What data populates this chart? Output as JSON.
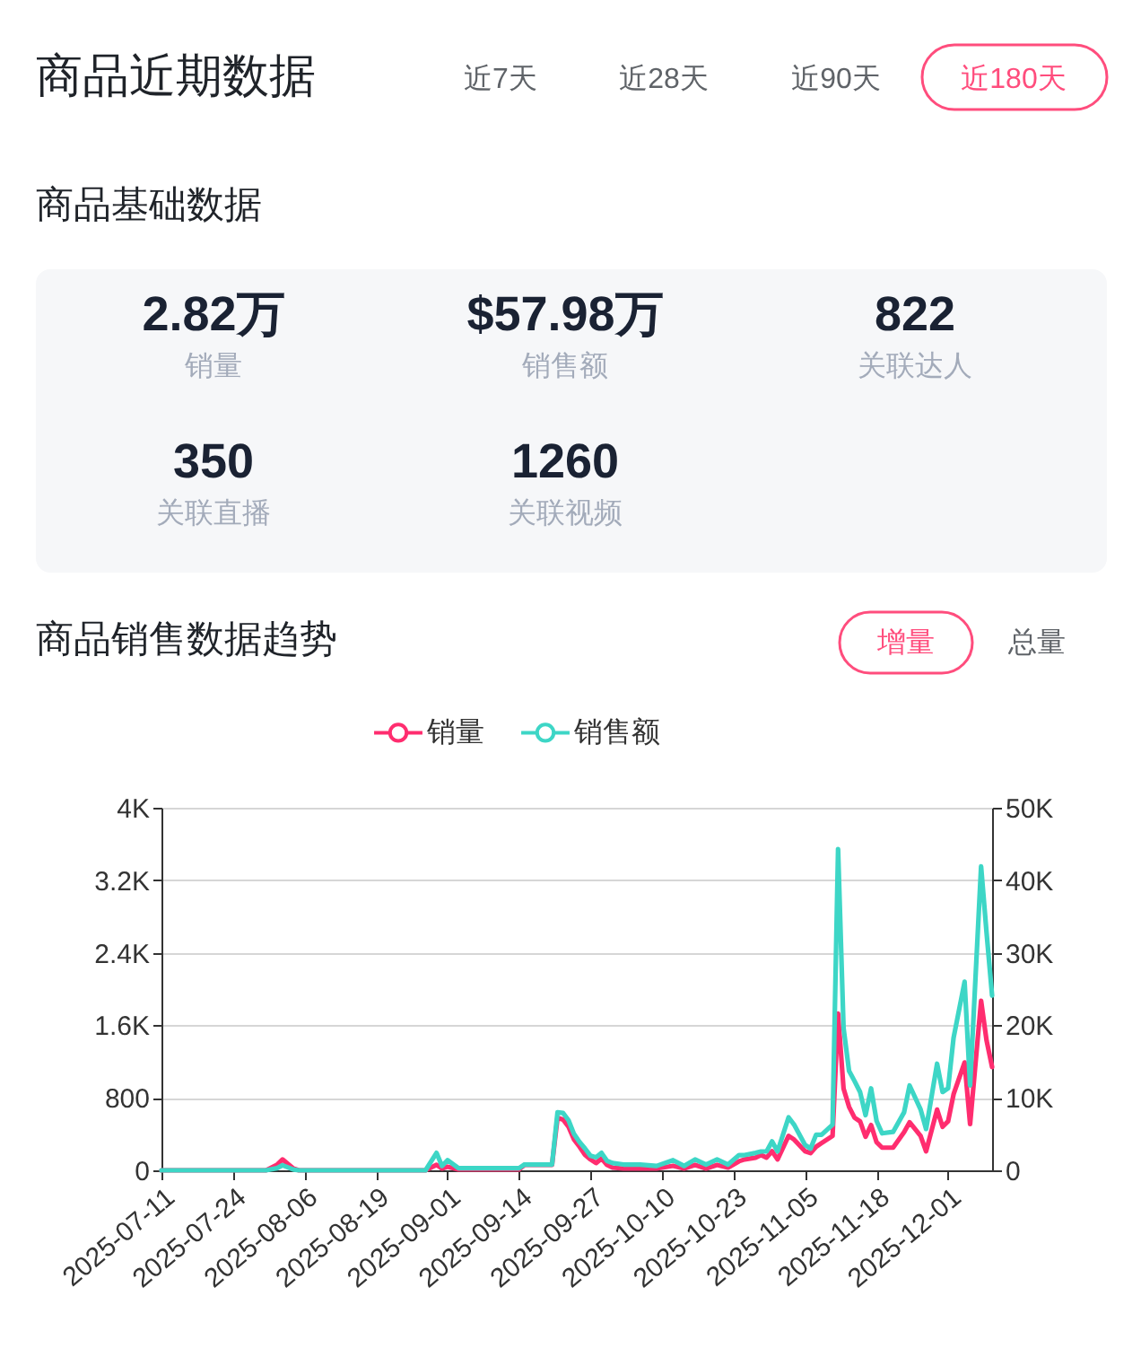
{
  "chart_data": {
    "type": "line",
    "title": "商品销售数据趋势",
    "annotations": [
      "商品近期数据",
      "近7天",
      "近28天",
      "近90天",
      "近180天",
      "商品基础数据",
      "2.82万",
      "销量",
      "$57.98万",
      "销售额",
      "822",
      "关联达人",
      "350",
      "关联直播",
      "1260",
      "关联视频",
      "增量",
      "总量"
    ],
    "x": [
      "2025-07-11",
      "2025-07-30",
      "2025-08-01",
      "2025-08-02",
      "2025-08-04",
      "2025-08-05",
      "2025-08-28",
      "2025-08-30",
      "2025-08-31",
      "2025-09-01",
      "2025-09-03",
      "2025-09-14",
      "2025-09-15",
      "2025-09-20",
      "2025-09-21",
      "2025-09-22",
      "2025-09-23",
      "2025-09-24",
      "2025-09-25",
      "2025-09-26",
      "2025-09-27",
      "2025-09-28",
      "2025-09-29",
      "2025-09-30",
      "2025-10-01",
      "2025-10-03",
      "2025-10-06",
      "2025-10-09",
      "2025-10-12",
      "2025-10-14",
      "2025-10-16",
      "2025-10-18",
      "2025-10-20",
      "2025-10-22",
      "2025-10-24",
      "2025-10-25",
      "2025-10-27",
      "2025-10-28",
      "2025-10-29",
      "2025-10-30",
      "2025-10-31",
      "2025-11-02",
      "2025-11-03",
      "2025-11-05",
      "2025-11-06",
      "2025-11-07",
      "2025-11-08",
      "2025-11-10",
      "2025-11-11",
      "2025-11-12",
      "2025-11-13",
      "2025-11-14",
      "2025-11-15",
      "2025-11-16",
      "2025-11-17",
      "2025-11-18",
      "2025-11-19",
      "2025-11-21",
      "2025-11-23",
      "2025-11-24",
      "2025-11-26",
      "2025-11-27",
      "2025-11-29",
      "2025-11-30",
      "2025-12-01",
      "2025-12-02",
      "2025-12-04",
      "2025-12-05",
      "2025-12-07",
      "2025-12-08",
      "2025-12-09"
    ],
    "xlim": [
      "2025-07-11",
      "2025-12-09"
    ],
    "xticks": [
      "2025-07-11",
      "2025-07-24",
      "2025-08-06",
      "2025-08-19",
      "2025-09-01",
      "2025-09-14",
      "2025-09-27",
      "2025-10-10",
      "2025-10-23",
      "2025-11-05",
      "2025-11-18",
      "2025-12-01"
    ],
    "ylim": [
      0,
      4000
    ],
    "yticks": [
      0,
      800,
      {
        "value": 1600,
        "label": "1.6K"
      },
      {
        "value": 2400,
        "label": "2.4K"
      },
      {
        "value": 3200,
        "label": "3.2K"
      },
      {
        "value": 4000,
        "label": "4K"
      }
    ],
    "y2lim": [
      0,
      50000
    ],
    "y2ticks": [
      0,
      {
        "value": 10000,
        "label": "10K"
      },
      {
        "value": 20000,
        "label": "20K"
      },
      {
        "value": 30000,
        "label": "30K"
      },
      {
        "value": 40000,
        "label": "40K"
      },
      {
        "value": 50000,
        "label": "50K"
      }
    ],
    "grid": "y",
    "legend": "top",
    "series": [
      {
        "name": "销量",
        "color": "#ff2d6f",
        "values": [
          0,
          0,
          60,
          120,
          20,
          0,
          0,
          60,
          20,
          40,
          10,
          10,
          60,
          60,
          580,
          560,
          480,
          340,
          260,
          170,
          120,
          80,
          130,
          60,
          30,
          20,
          20,
          20,
          50,
          20,
          60,
          20,
          60,
          30,
          100,
          120,
          140,
          170,
          140,
          210,
          120,
          380,
          340,
          210,
          190,
          260,
          300,
          380,
          1730,
          900,
          700,
          580,
          540,
          370,
          500,
          310,
          250,
          250,
          420,
          530,
          380,
          210,
          670,
          480,
          540,
          840,
          1190,
          510,
          1870,
          1430,
          1140
        ]
      },
      {
        "name": "销售额",
        "color": "#3dd6c6",
        "axis": "y2",
        "values": [
          0,
          0,
          300,
          700,
          100,
          0,
          0,
          2400,
          600,
          1400,
          300,
          300,
          800,
          800,
          8000,
          7900,
          6900,
          5000,
          3900,
          3000,
          2000,
          1800,
          2400,
          1300,
          1000,
          800,
          800,
          600,
          1400,
          600,
          1500,
          800,
          1500,
          800,
          2100,
          2100,
          2400,
          2600,
          2600,
          4000,
          2600,
          7300,
          6300,
          3500,
          3000,
          4900,
          4900,
          6300,
          44300,
          19600,
          13700,
          12300,
          10800,
          7600,
          11300,
          6800,
          5100,
          5300,
          8000,
          11700,
          8400,
          5700,
          14700,
          10800,
          11300,
          18300,
          26000,
          11700,
          41900,
          32700,
          24100
        ]
      }
    ]
  }
}
